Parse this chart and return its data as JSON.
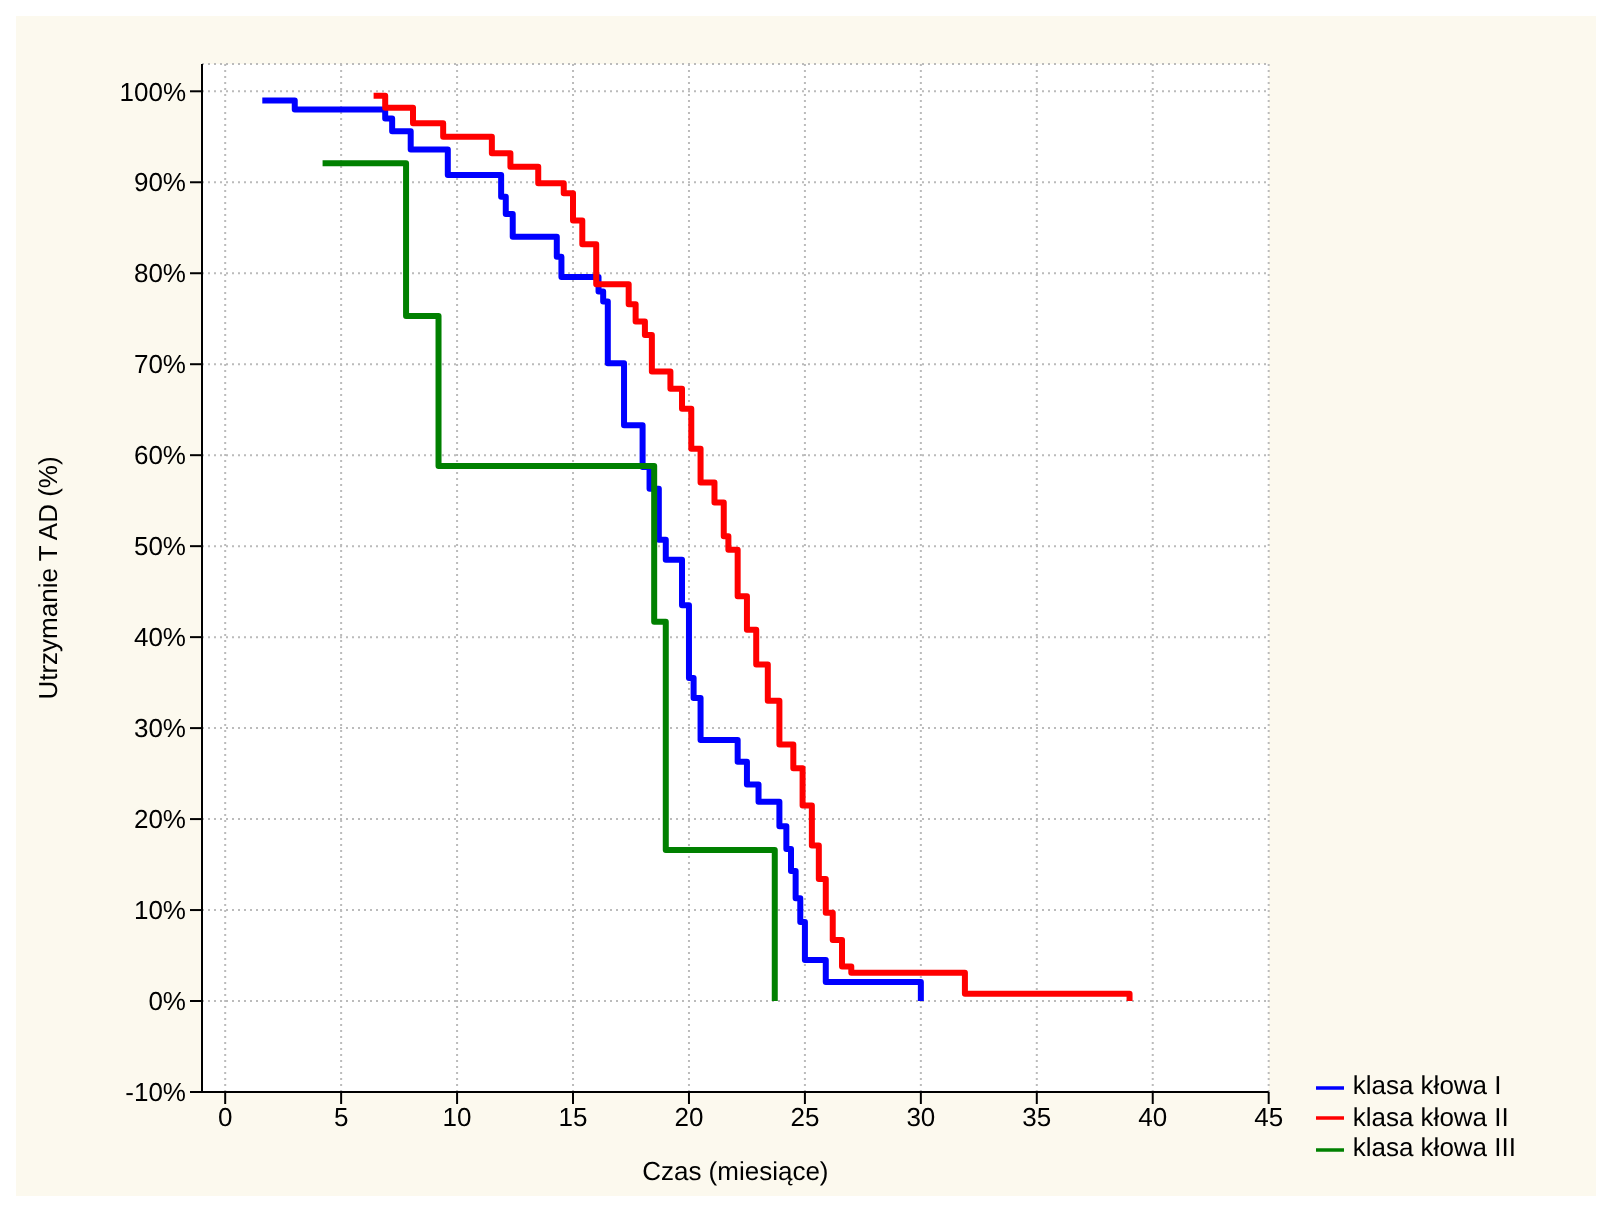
{
  "chart_data": {
    "type": "step",
    "xlabel": "Czas (miesiące)",
    "ylabel": "Utrzymanie T AD (%)",
    "xlim": [
      -1,
      45
    ],
    "xticks": [
      0,
      5,
      10,
      15,
      20,
      25,
      30,
      35,
      40,
      45
    ],
    "ylim": [
      -10,
      103
    ],
    "yticks": [
      {
        "value": -10,
        "label": "-10%"
      },
      {
        "value": 0,
        "label": "0%"
      },
      {
        "value": 10,
        "label": "10%"
      },
      {
        "value": 20,
        "label": "20%"
      },
      {
        "value": 30,
        "label": "30%"
      },
      {
        "value": 40,
        "label": "40%"
      },
      {
        "value": 50,
        "label": "50%"
      },
      {
        "value": 60,
        "label": "60%"
      },
      {
        "value": 70,
        "label": "70%"
      },
      {
        "value": 80,
        "label": "80%"
      },
      {
        "value": 90,
        "label": "90%"
      },
      {
        "value": 100,
        "label": "100%"
      }
    ],
    "grid": true,
    "legend": "bottom right",
    "marker": "none",
    "line_style": "solid",
    "series": [
      {
        "name": "klasa kłowa I",
        "color": "#0000ff",
        "x": [
          1.6,
          3.0,
          6.9,
          7.2,
          8.0,
          9.6,
          11.9,
          12.1,
          12.4,
          14.3,
          14.5,
          16.1,
          16.3,
          16.5,
          17.2,
          18.0,
          18.3,
          18.7,
          19.0,
          19.7,
          20.0,
          20.2,
          20.5,
          22.1,
          22.5,
          23.0,
          23.9,
          24.2,
          24.4,
          24.6,
          24.8,
          25.0,
          25.9,
          30.0
        ],
        "values": [
          99,
          98,
          97,
          95.6,
          93.6,
          90.8,
          88.4,
          86.5,
          84,
          81.8,
          79.6,
          78,
          76.9,
          70.1,
          63.3,
          58.7,
          56.3,
          50.7,
          48.5,
          43.5,
          35.5,
          33.3,
          28.7,
          26.3,
          23.8,
          21.9,
          19.2,
          16.7,
          14.3,
          11.3,
          8.7,
          4.5,
          2.1,
          0
        ]
      },
      {
        "name": "klasa kłowa II",
        "color": "#ff0000",
        "x": [
          6.4,
          6.9,
          8.1,
          9.4,
          11.5,
          12.3,
          13.5,
          14.6,
          15.0,
          15.4,
          16.0,
          17.4,
          17.7,
          18.1,
          18.4,
          19.2,
          19.7,
          20.1,
          20.5,
          21.1,
          21.5,
          21.7,
          22.1,
          22.5,
          22.9,
          23.4,
          23.9,
          24.5,
          24.9,
          25.3,
          25.6,
          25.9,
          26.2,
          26.6,
          27.0,
          31.9,
          39.0
        ],
        "values": [
          99.5,
          98.2,
          96.5,
          95,
          93.2,
          91.7,
          89.9,
          88.8,
          85.8,
          83.2,
          78.8,
          76.6,
          74.7,
          73.2,
          69.2,
          67.3,
          65.1,
          60.7,
          57,
          54.8,
          51.1,
          49.6,
          44.5,
          40.8,
          37,
          33,
          28.2,
          25.6,
          21.5,
          17.1,
          13.4,
          9.7,
          6.7,
          3.8,
          3.1,
          0.8,
          0
        ]
      },
      {
        "name": "klasa kłowa III",
        "color": "#008000",
        "x": [
          4.2,
          7.8,
          9.2,
          18.5,
          19.0,
          23.7
        ],
        "values": [
          92.1,
          75.3,
          58.8,
          41.7,
          16.6,
          0
        ]
      }
    ]
  }
}
